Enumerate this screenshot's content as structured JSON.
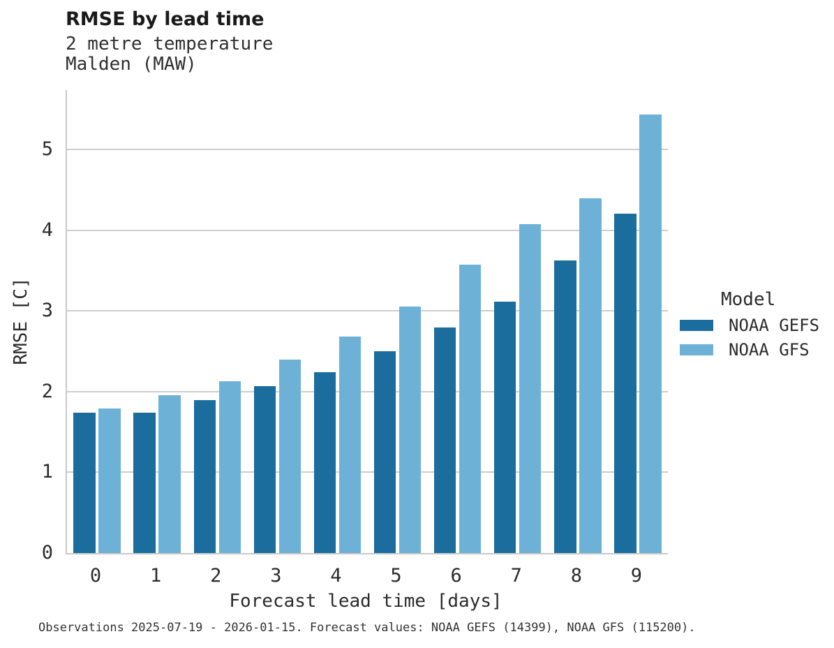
{
  "title": "RMSE by lead time",
  "subtitle_line1": "2 metre temperature",
  "subtitle_line2": "Malden (MAW)",
  "footer": "Observations 2025-07-19 - 2026-01-15. Forecast values: NOAA GEFS (14399), NOAA GFS (115200).",
  "legend": {
    "title": "Model",
    "items": [
      {
        "label": "NOAA GEFS",
        "color": "#1b6d9d"
      },
      {
        "label": "NOAA GFS",
        "color": "#6db1d6"
      }
    ]
  },
  "chart_data": {
    "type": "bar",
    "title": "RMSE by lead time",
    "subtitle": "2 metre temperature, Malden (MAW)",
    "xlabel": "Forecast lead time [days]",
    "ylabel": "RMSE [C]",
    "categories": [
      0,
      1,
      2,
      3,
      4,
      5,
      6,
      7,
      8,
      9
    ],
    "series": [
      {
        "name": "NOAA GEFS",
        "color": "#1b6d9d",
        "values": [
          1.74,
          1.74,
          1.9,
          2.07,
          2.24,
          2.5,
          2.8,
          3.12,
          3.63,
          4.21
        ]
      },
      {
        "name": "NOAA GFS",
        "color": "#6db1d6",
        "values": [
          1.79,
          1.96,
          2.13,
          2.4,
          2.68,
          3.06,
          3.58,
          4.08,
          4.4,
          5.44
        ]
      }
    ],
    "ylim": [
      0,
      5.74
    ],
    "yticks": [
      0,
      1,
      2,
      3,
      4,
      5
    ],
    "grid": true,
    "legend_position": "right"
  }
}
